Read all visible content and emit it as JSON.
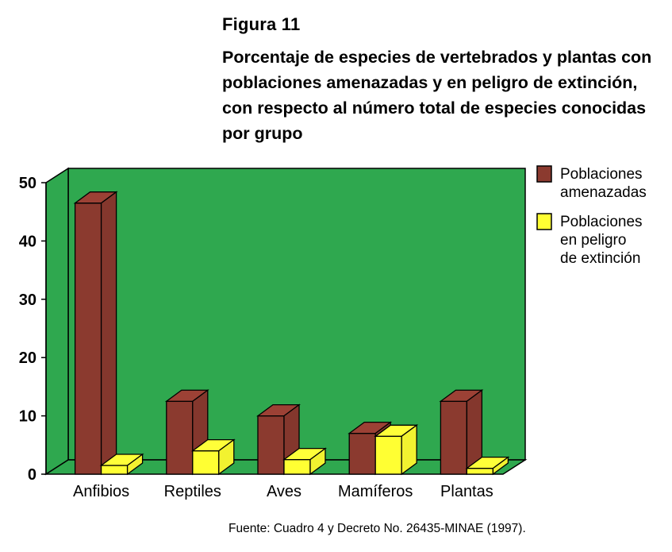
{
  "figure_label": "Figura 11",
  "chart_data": {
    "type": "bar",
    "title": "Porcentaje de especies de vertebrados y plantas con poblaciones amenazadas y en peligro de extinción, con respecto al número total de especies conocidas por grupo",
    "categories": [
      "Anfibios",
      "Reptiles",
      "Aves",
      "Mamíferos",
      "Plantas"
    ],
    "series": [
      {
        "name": "Poblaciones amenazadas",
        "values": [
          46.5,
          12.5,
          10,
          7,
          12.5
        ],
        "color": "#8b3a2f"
      },
      {
        "name": "Poblaciones en peligro de extinción",
        "values": [
          1.5,
          4,
          2.5,
          6.5,
          1
        ],
        "color": "#ffff33"
      }
    ],
    "ylim": [
      0,
      50
    ],
    "yticks": [
      0,
      10,
      20,
      30,
      40,
      50
    ],
    "xlabel": "",
    "ylabel": "",
    "grid": false,
    "three_d": true,
    "background_color": "#2fa84f",
    "legend_position": "top-right",
    "legend_lines": [
      [
        "Poblaciones",
        "amenazadas"
      ],
      [
        "Poblaciones",
        "en peligro",
        "de extinción"
      ]
    ]
  },
  "source": "Fuente: Cuadro 4 y Decreto No. 26435-MINAE (1997)."
}
